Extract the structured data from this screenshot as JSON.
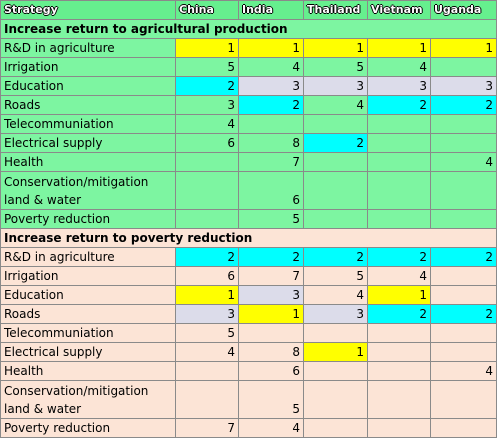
{
  "table": {
    "header": [
      "Strategy",
      "China",
      "India",
      "Thailand",
      "Vietnam",
      "Uganda"
    ],
    "sections": [
      {
        "title": "Increase return to agricultural production",
        "background": "#7df5a1",
        "rows": [
          {
            "label": "R&D in agriculture",
            "cells": [
              1,
              1,
              1,
              1,
              1
            ],
            "fills": [
              "#ffff00",
              "#ffff00",
              "#ffff00",
              "#ffff00",
              "#ffff00"
            ]
          },
          {
            "label": "Irrigation",
            "cells": [
              5,
              4,
              5,
              4,
              null
            ],
            "fills": [
              null,
              null,
              null,
              null,
              null
            ]
          },
          {
            "label": "Education",
            "cells": [
              2,
              3,
              3,
              3,
              3
            ],
            "fills": [
              "#00ffff",
              "#dcdcea",
              "#dcdcea",
              "#dcdcea",
              "#dcdcea"
            ]
          },
          {
            "label": "Roads",
            "cells": [
              3,
              2,
              4,
              2,
              2
            ],
            "fills": [
              null,
              "#00ffff",
              null,
              "#00ffff",
              "#00ffff"
            ]
          },
          {
            "label": "Telecommuniation",
            "cells": [
              4,
              null,
              null,
              null,
              null
            ],
            "fills": [
              null,
              null,
              null,
              null,
              null
            ]
          },
          {
            "label": "Electrical supply",
            "cells": [
              6,
              8,
              2,
              null,
              null
            ],
            "fills": [
              null,
              null,
              "#00ffff",
              null,
              null
            ]
          },
          {
            "label": "Health",
            "cells": [
              null,
              7,
              null,
              null,
              4
            ],
            "fills": [
              null,
              null,
              null,
              null,
              null
            ]
          },
          {
            "label": "Conservation/mitigation\nland & water",
            "cells": [
              null,
              6,
              null,
              null,
              null
            ],
            "fills": [
              null,
              null,
              null,
              null,
              null
            ]
          },
          {
            "label": "Poverty reduction",
            "cells": [
              null,
              5,
              null,
              null,
              null
            ],
            "fills": [
              null,
              null,
              null,
              null,
              null
            ]
          }
        ]
      },
      {
        "title": "Increase return to poverty reduction",
        "background": "#fce4d6",
        "rows": [
          {
            "label": "R&D in agriculture",
            "cells": [
              2,
              2,
              2,
              2,
              2
            ],
            "fills": [
              "#00ffff",
              "#00ffff",
              "#00ffff",
              "#00ffff",
              "#00ffff"
            ]
          },
          {
            "label": "Irrigation",
            "cells": [
              6,
              7,
              5,
              4,
              null
            ],
            "fills": [
              null,
              null,
              null,
              null,
              null
            ]
          },
          {
            "label": "Education",
            "cells": [
              1,
              3,
              4,
              1,
              null
            ],
            "fills": [
              "#ffff00",
              "#dcdcea",
              null,
              "#ffff00",
              null
            ]
          },
          {
            "label": "Roads",
            "cells": [
              3,
              1,
              3,
              2,
              2
            ],
            "fills": [
              "#dcdcea",
              "#ffff00",
              "#dcdcea",
              "#00ffff",
              "#00ffff"
            ]
          },
          {
            "label": "Telecommuniation",
            "cells": [
              5,
              null,
              null,
              null,
              null
            ],
            "fills": [
              null,
              null,
              null,
              null,
              null
            ]
          },
          {
            "label": "Electrical supply",
            "cells": [
              4,
              8,
              1,
              null,
              null
            ],
            "fills": [
              null,
              null,
              "#ffff00",
              null,
              null
            ]
          },
          {
            "label": "Health",
            "cells": [
              null,
              6,
              null,
              null,
              4
            ],
            "fills": [
              null,
              null,
              null,
              null,
              null
            ]
          },
          {
            "label": "Conservation/mitigation\nland & water",
            "cells": [
              null,
              5,
              null,
              null,
              null
            ],
            "fills": [
              null,
              null,
              null,
              null,
              null
            ]
          },
          {
            "label": "Poverty reduction",
            "cells": [
              7,
              4,
              null,
              null,
              null
            ],
            "fills": [
              null,
              null,
              null,
              null,
              null
            ]
          }
        ]
      }
    ]
  }
}
